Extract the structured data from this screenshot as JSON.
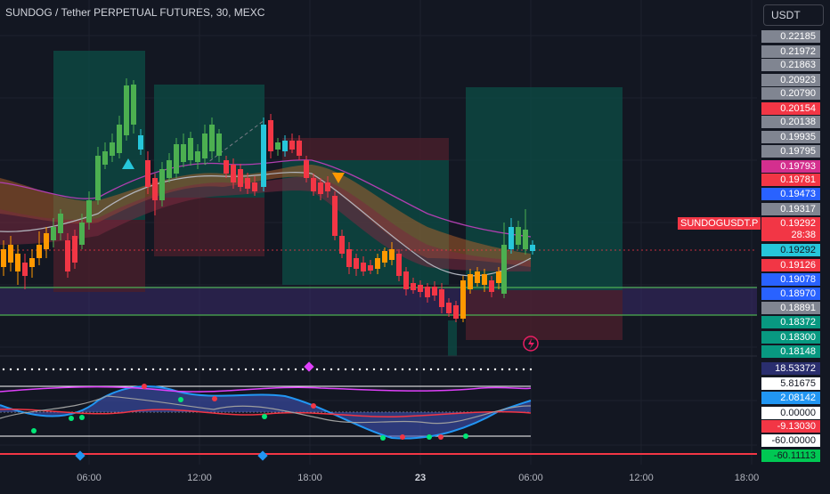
{
  "header": {
    "title": "SUNDOG / Tether PERPETUAL FUTURES, 30, MEXC",
    "currency": "USDT",
    "symbol_tag": "SUNDOGUSDT.P"
  },
  "price_labels": [
    {
      "text": "0.22185",
      "bg": "#808591",
      "fg": "#ffffff"
    },
    {
      "text": "0.21972",
      "bg": "#808591",
      "fg": "#ffffff"
    },
    {
      "text": "0.21863",
      "bg": "#808591",
      "fg": "#ffffff"
    },
    {
      "text": "0.20923",
      "bg": "#808591",
      "fg": "#ffffff"
    },
    {
      "text": "0.20790",
      "bg": "#808591",
      "fg": "#ffffff"
    },
    {
      "text": "0.20154",
      "bg": "#f23645",
      "fg": "#ffffff"
    },
    {
      "text": "0.20138",
      "bg": "#808591",
      "fg": "#ffffff"
    },
    {
      "text": "0.19935",
      "bg": "#808591",
      "fg": "#ffffff"
    },
    {
      "text": "0.19795",
      "bg": "#808591",
      "fg": "#ffffff"
    },
    {
      "text": "0.19793",
      "bg": "#d42f8e",
      "fg": "#ffffff"
    },
    {
      "text": "0.19781",
      "bg": "#f23645",
      "fg": "#ffffff"
    },
    {
      "text": "0.19473",
      "bg": "#2962ff",
      "fg": "#ffffff"
    },
    {
      "text": "0.19317",
      "bg": "#808591",
      "fg": "#ffffff"
    },
    {
      "text": "0.19292",
      "bg": "#f23645",
      "fg": "#ffffff"
    },
    {
      "text": "28:38",
      "bg": "#f23645",
      "fg": "#ffffff"
    },
    {
      "text": "0.19292",
      "bg": "#26c6da",
      "fg": "#131722"
    },
    {
      "text": "0.19126",
      "bg": "#f23645",
      "fg": "#ffffff"
    },
    {
      "text": "0.19078",
      "bg": "#2962ff",
      "fg": "#ffffff"
    },
    {
      "text": "0.18970",
      "bg": "#2962ff",
      "fg": "#ffffff"
    },
    {
      "text": "0.18891",
      "bg": "#808591",
      "fg": "#ffffff"
    },
    {
      "text": "0.18372",
      "bg": "#089981",
      "fg": "#ffffff"
    },
    {
      "text": "0.18300",
      "bg": "#089981",
      "fg": "#ffffff"
    },
    {
      "text": "0.18148",
      "bg": "#089981",
      "fg": "#ffffff"
    }
  ],
  "indicator_labels": [
    {
      "text": "18.53372",
      "bg": "#2a2e6e",
      "fg": "#ffffff"
    },
    {
      "text": "5.81675",
      "bg": "#ffffff",
      "fg": "#131722"
    },
    {
      "text": "2.08142",
      "bg": "#2196f3",
      "fg": "#ffffff"
    },
    {
      "text": "0.00000",
      "bg": "#ffffff",
      "fg": "#131722"
    },
    {
      "text": "-9.13030",
      "bg": "#f23645",
      "fg": "#ffffff"
    },
    {
      "text": "-60.00000",
      "bg": "#ffffff",
      "fg": "#131722"
    },
    {
      "text": "-60.11113",
      "bg": "#00c853",
      "fg": "#131722"
    }
  ],
  "time_axis": [
    "06:00",
    "12:00",
    "18:00",
    "23",
    "06:00",
    "12:00",
    "18:00"
  ],
  "colors": {
    "up": "#4caf50",
    "down": "#f23645",
    "orange": "#ff9800",
    "cyan": "#26c6da",
    "background": "#131722"
  }
}
